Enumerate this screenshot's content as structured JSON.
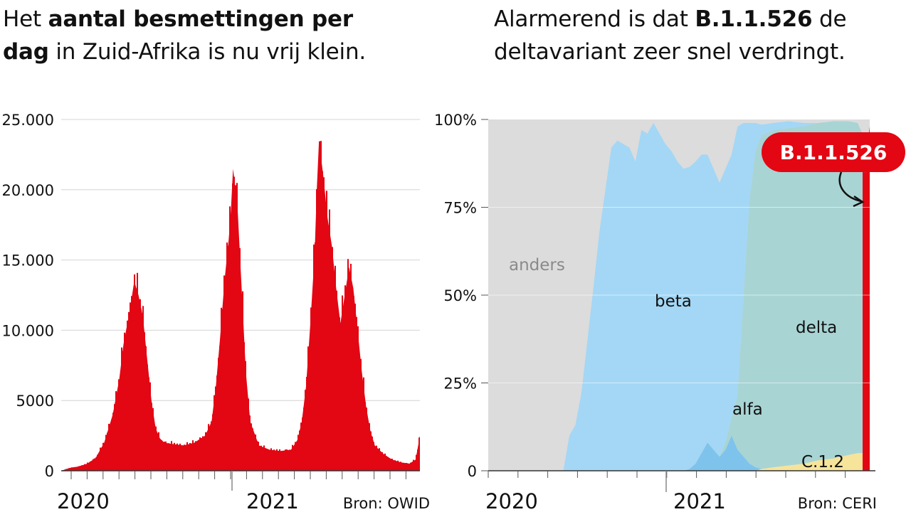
{
  "left": {
    "headline": {
      "part1": "Het ",
      "bold1": "aantal besmettingen per",
      "bold2": "dag",
      "part2": " in Zuid-Afrika is nu vrij klein."
    },
    "source": "Bron: OWID"
  },
  "right": {
    "headline": {
      "part1": "Alarmerend is dat ",
      "bold1": "B.1.1.526",
      "part2": " de",
      "line2": "deltavariant zeer snel verdringt."
    },
    "source": "Bron: CERI",
    "callout": "B.1.1.526"
  },
  "colors": {
    "cases": "#e30613",
    "anders": "#dcdcdc",
    "beta": "#a3d7f5",
    "alfa": "#7ec3ec",
    "delta": "#a8d4d4",
    "c12": "#f6e49a",
    "b11526": "#e30613",
    "badge": "#e30613"
  },
  "chart_data": [
    {
      "type": "area",
      "ylim": [
        0,
        25000
      ],
      "yticks": [
        {
          "value": 0,
          "label": "0"
        },
        {
          "value": 5000,
          "label": "5000"
        },
        {
          "value": 10000,
          "label": "10.000"
        },
        {
          "value": 15000,
          "label": "15.000"
        },
        {
          "value": 20000,
          "label": "20.000"
        },
        {
          "value": 25000,
          "label": "25.000"
        }
      ],
      "xticks": [
        "2020",
        "2021"
      ],
      "x_start": 2020.18,
      "x_end": 2021.85,
      "series": [
        {
          "x": [
            2020.18,
            2020.22,
            2020.26,
            2020.3,
            2020.34,
            2020.38,
            2020.42,
            2020.45,
            2020.47,
            2020.5,
            2020.52,
            2020.54,
            2020.56,
            2020.58,
            2020.6,
            2020.62,
            2020.64,
            2020.66,
            2020.7,
            2020.75,
            2020.8,
            2020.85,
            2020.88,
            2020.9,
            2020.92,
            2020.94,
            2020.96,
            2020.97,
            2020.98,
            2021.0,
            2021.02,
            2021.04,
            2021.06,
            2021.1,
            2021.15,
            2021.2,
            2021.25,
            2021.28,
            2021.3,
            2021.32,
            2021.34,
            2021.36,
            2021.37,
            2021.38,
            2021.4,
            2021.42,
            2021.44,
            2021.46,
            2021.48,
            2021.5,
            2021.52,
            2021.54,
            2021.56,
            2021.58,
            2021.6,
            2021.62,
            2021.64,
            2021.68,
            2021.72,
            2021.76,
            2021.8,
            2021.83,
            2021.85
          ],
          "values": [
            0,
            200,
            300,
            500,
            900,
            2000,
            4000,
            6500,
            9000,
            11500,
            13500,
            12500,
            11000,
            8000,
            5000,
            3000,
            2300,
            2000,
            1900,
            1800,
            2000,
            2500,
            3500,
            6000,
            9500,
            13500,
            16500,
            18500,
            21500,
            19000,
            13000,
            7000,
            3500,
            1800,
            1500,
            1400,
            1500,
            2200,
            3500,
            6000,
            10500,
            15500,
            20000,
            23500,
            21000,
            18000,
            16000,
            13000,
            10500,
            12500,
            14500,
            13000,
            10000,
            7000,
            4500,
            2800,
            1800,
            1200,
            800,
            600,
            500,
            800,
            2500
          ]
        }
      ]
    },
    {
      "type": "area",
      "ylim": [
        0,
        100
      ],
      "yticks": [
        {
          "value": 0,
          "label": "0"
        },
        {
          "value": 25,
          "label": "25%"
        },
        {
          "value": 50,
          "label": "50%"
        },
        {
          "value": 75,
          "label": "75%"
        },
        {
          "value": 100,
          "label": "100%"
        }
      ],
      "xticks": [
        "2020",
        "2021"
      ],
      "x_start": 2020.45,
      "x_end": 2021.72,
      "x": [
        2020.45,
        2020.5,
        2020.55,
        2020.6,
        2020.7,
        2020.72,
        2020.74,
        2020.76,
        2020.78,
        2020.8,
        2020.82,
        2020.84,
        2020.86,
        2020.88,
        2020.9,
        2020.92,
        2020.94,
        2020.96,
        2020.98,
        2021.0,
        2021.02,
        2021.04,
        2021.06,
        2021.08,
        2021.1,
        2021.12,
        2021.14,
        2021.16,
        2021.18,
        2021.2,
        2021.22,
        2021.24,
        2021.26,
        2021.28,
        2021.3,
        2021.32,
        2021.34,
        2021.36,
        2021.4,
        2021.45,
        2021.5,
        2021.55,
        2021.6,
        2021.65,
        2021.68,
        2021.7,
        2021.71,
        2021.72
      ],
      "series": [
        {
          "name": "C.1.2",
          "values": [
            0,
            0,
            0,
            0,
            0,
            0,
            0,
            0,
            0,
            0,
            0,
            0,
            0,
            0,
            0,
            0,
            0,
            0,
            0,
            0,
            0,
            0,
            0,
            0,
            0,
            0,
            0,
            0,
            0,
            0,
            0,
            0,
            0,
            0,
            0,
            0,
            0,
            0.5,
            1,
            1.5,
            2,
            3,
            3.5,
            4.5,
            5,
            5,
            5,
            3
          ]
        },
        {
          "name": "alfa",
          "values": [
            0,
            0,
            0,
            0,
            0,
            0,
            0,
            0,
            0,
            0,
            0,
            0,
            0,
            0,
            0,
            0,
            0,
            0,
            0,
            0,
            0,
            0,
            0,
            0,
            0,
            0.5,
            2,
            5,
            8,
            6,
            4,
            6,
            10,
            6,
            4,
            2,
            1,
            0,
            0,
            0,
            0,
            0,
            0,
            0,
            0,
            0,
            0,
            0
          ]
        },
        {
          "name": "delta",
          "values": [
            0,
            0,
            0,
            0,
            0,
            0,
            0,
            0,
            0,
            0,
            0,
            0,
            0,
            0,
            0,
            0,
            0,
            0,
            0,
            0,
            0,
            0,
            0,
            0,
            0,
            0,
            0,
            0,
            0,
            0,
            0,
            2,
            5,
            15,
            45,
            75,
            90,
            95,
            96,
            96,
            96,
            96,
            96,
            95,
            94,
            90,
            80,
            10
          ]
        },
        {
          "name": "beta",
          "values": [
            0,
            0,
            0,
            0,
            0,
            10,
            13,
            22,
            37,
            52,
            68,
            80,
            92,
            94,
            93,
            92,
            88,
            97,
            96,
            99,
            96,
            93,
            91,
            88,
            86,
            86,
            86,
            85,
            82,
            80,
            78,
            78,
            75,
            77,
            50,
            22,
            8,
            3,
            2,
            2,
            1,
            0,
            0,
            0,
            0,
            0,
            0,
            0
          ]
        },
        {
          "name": "B.1.1.526",
          "values": [
            0,
            0,
            0,
            0,
            0,
            0,
            0,
            0,
            0,
            0,
            0,
            0,
            0,
            0,
            0,
            0,
            0,
            0,
            0,
            0,
            0,
            0,
            0,
            0,
            0,
            0,
            0,
            0,
            0,
            0,
            0,
            0,
            0,
            0,
            0,
            0,
            0,
            0,
            0,
            0,
            0,
            0,
            0,
            0,
            0,
            0,
            5,
            85
          ]
        }
      ],
      "labels": {
        "anders": "anders",
        "beta": "beta",
        "alfa": "alfa",
        "delta": "delta",
        "c12": "C.1.2"
      }
    }
  ]
}
